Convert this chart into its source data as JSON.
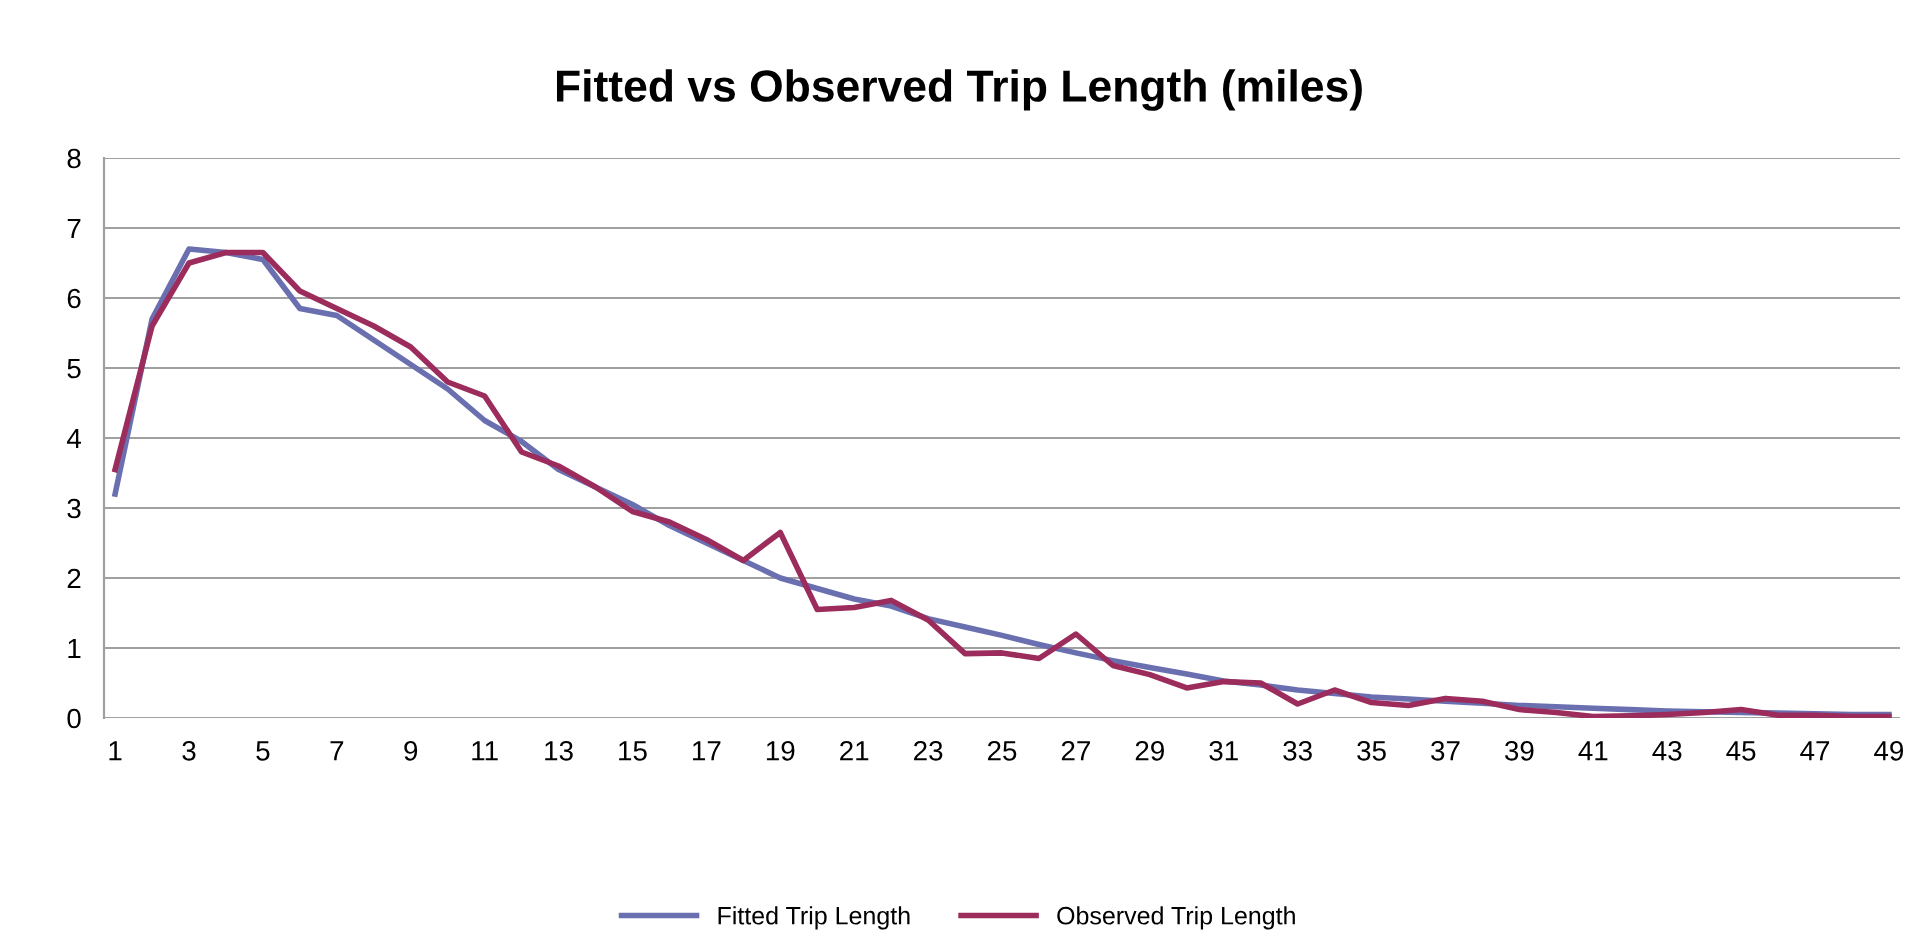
{
  "chart_data": {
    "type": "line",
    "title": "Fitted vs Observed Trip Length (miles)",
    "categories": [
      "1",
      null,
      "3",
      null,
      "5",
      null,
      "7",
      null,
      "9",
      null,
      "11",
      null,
      "13",
      null,
      "15",
      null,
      "17",
      null,
      "19",
      null,
      "21",
      null,
      "23",
      null,
      "25",
      null,
      "27",
      null,
      "29",
      null,
      "31",
      null,
      "33",
      null,
      "35",
      null,
      "37",
      null,
      "39",
      null,
      "41",
      null,
      "43",
      null,
      "45",
      null,
      "47",
      null,
      "49"
    ],
    "series": [
      {
        "name": "Fitted Trip Length",
        "color": "#6a6fb0",
        "values": [
          3.2,
          5.7,
          6.7,
          6.65,
          6.55,
          5.85,
          5.75,
          5.4,
          5.05,
          4.7,
          4.25,
          3.95,
          3.55,
          3.3,
          3.05,
          2.75,
          2.5,
          2.25,
          2.0,
          1.85,
          1.7,
          1.6,
          1.42,
          1.3,
          1.18,
          1.05,
          0.93,
          0.82,
          0.72,
          0.63,
          0.53,
          0.47,
          0.4,
          0.35,
          0.3,
          0.27,
          0.24,
          0.21,
          0.18,
          0.16,
          0.14,
          0.12,
          0.1,
          0.09,
          0.08,
          0.07,
          0.06,
          0.05,
          0.05
        ]
      },
      {
        "name": "Observed Trip Length",
        "color": "#9b2c5c",
        "values": [
          3.55,
          5.6,
          6.5,
          6.65,
          6.65,
          6.1,
          5.85,
          5.6,
          5.3,
          4.8,
          4.6,
          3.8,
          3.6,
          3.3,
          2.95,
          2.8,
          2.55,
          2.25,
          2.65,
          1.55,
          1.58,
          1.68,
          1.4,
          0.92,
          0.93,
          0.85,
          1.2,
          0.75,
          0.62,
          0.43,
          0.52,
          0.5,
          0.2,
          0.4,
          0.22,
          0.18,
          0.28,
          0.24,
          0.12,
          0.08,
          0.02,
          0.03,
          0.05,
          0.08,
          0.12,
          0.04,
          0.04,
          0.02,
          0.02
        ]
      }
    ],
    "ylim": [
      0,
      8
    ],
    "yticks": [
      0,
      1,
      2,
      3,
      4,
      5,
      6,
      7,
      8
    ],
    "grid": "y",
    "legend": "bottom",
    "marker": "none",
    "line_style": "solid"
  }
}
